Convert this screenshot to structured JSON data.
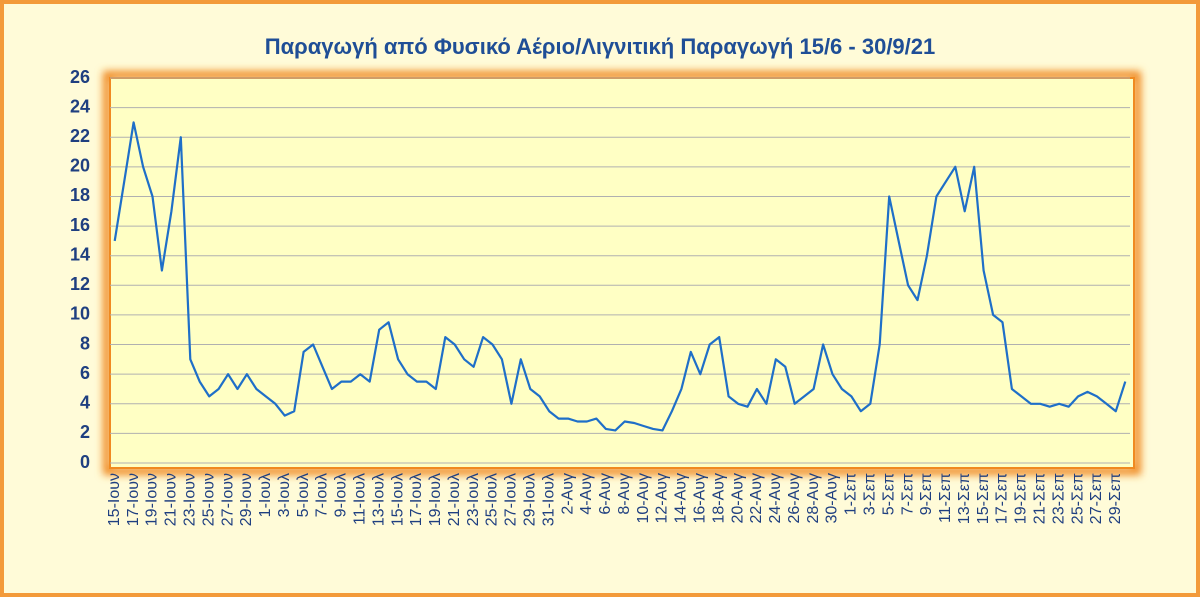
{
  "chart_data": {
    "type": "line",
    "title": "Παραγωγή από Φυσικό Αέριο/Λιγνιτική Παραγωγή 15/6 - 30/9/21",
    "categories": [
      "15-Ιουν",
      null,
      "17-Ιουν",
      null,
      "19-Ιουν",
      null,
      "21-Ιουν",
      null,
      "23-Ιουν",
      null,
      "25-Ιουν",
      null,
      "27-Ιουν",
      null,
      "29-Ιουν",
      null,
      "1-Ιουλ",
      null,
      "3-Ιουλ",
      null,
      "5-Ιουλ",
      null,
      "7-Ιουλ",
      null,
      "9-Ιουλ",
      null,
      "11-Ιουλ",
      null,
      "13-Ιουλ",
      null,
      "15-Ιουλ",
      null,
      "17-Ιουλ",
      null,
      "19-Ιουλ",
      null,
      "21-Ιουλ",
      null,
      "23-Ιουλ",
      null,
      "25-Ιουλ",
      null,
      "27-Ιουλ",
      null,
      "29-Ιουλ",
      null,
      "31-Ιουλ",
      null,
      "2-Αυγ",
      null,
      "4-Αυγ",
      null,
      "6-Αυγ",
      null,
      "8-Αυγ",
      null,
      "10-Αυγ",
      null,
      "12-Αυγ",
      null,
      "14-Αυγ",
      null,
      "16-Αυγ",
      null,
      "18-Αυγ",
      null,
      "20-Αυγ",
      null,
      "22-Αυγ",
      null,
      "24-Αυγ",
      null,
      "26-Αυγ",
      null,
      "28-Αυγ",
      null,
      "30-Αυγ",
      null,
      "1-Σεπ",
      null,
      "3-Σεπ",
      null,
      "5-Σεπ",
      null,
      "7-Σεπ",
      null,
      "9-Σεπ",
      null,
      "11-Σεπ",
      null,
      "13-Σεπ",
      null,
      "15-Σεπ",
      null,
      "17-Σεπ",
      null,
      "19-Σεπ",
      null,
      "21-Σεπ",
      null,
      "23-Σεπ",
      null,
      "25-Σεπ",
      null,
      "27-Σεπ",
      null,
      "29-Σεπ",
      null
    ],
    "values": [
      15,
      19,
      23,
      20,
      18,
      13,
      17,
      22,
      7,
      5.5,
      4.5,
      5,
      6,
      5,
      6,
      5,
      4.5,
      4,
      3.2,
      3.5,
      7.5,
      8,
      6.5,
      5,
      5.5,
      5.5,
      6,
      5.5,
      9,
      9.5,
      7,
      6,
      5.5,
      5.5,
      5,
      8.5,
      8,
      7,
      6.5,
      8.5,
      8,
      7,
      4,
      7,
      5,
      4.5,
      3.5,
      3,
      3,
      2.8,
      2.8,
      3,
      2.3,
      2.2,
      2.8,
      2.7,
      2.5,
      2.3,
      2.2,
      3.5,
      5,
      7.5,
      6,
      8,
      8.5,
      4.5,
      4,
      3.8,
      5,
      4,
      7,
      6.5,
      4,
      4.5,
      5,
      8,
      6,
      5,
      4.5,
      3.5,
      4,
      8,
      18,
      15,
      12,
      11,
      14,
      18,
      19,
      20,
      17,
      20,
      13,
      10,
      9.5,
      5,
      4.5,
      4,
      4,
      3.8,
      4,
      3.8,
      4.5,
      4.8,
      4.5,
      4,
      3.5,
      5.5
    ],
    "color": "#1f6fc8",
    "ylim": [
      0,
      26
    ],
    "yticks": [
      0,
      2,
      4,
      6,
      8,
      10,
      12,
      14,
      16,
      18,
      20,
      22,
      24,
      26
    ],
    "grid": true
  }
}
